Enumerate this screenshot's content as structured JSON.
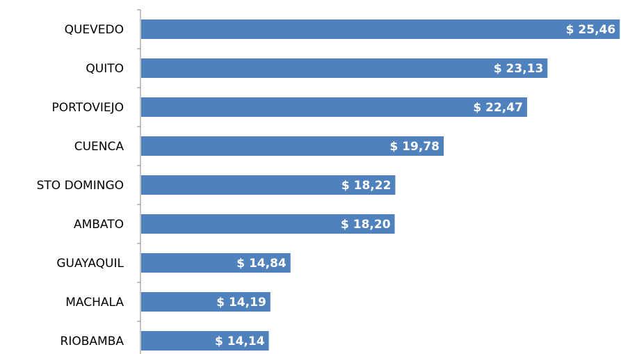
{
  "chart_data": {
    "type": "bar",
    "orientation": "horizontal",
    "categories": [
      "QUEVEDO",
      "QUITO",
      "PORTOVIEJO",
      "CUENCA",
      "STO DOMINGO",
      "AMBATO",
      "GUAYAQUIL",
      "MACHALA",
      "RIOBAMBA"
    ],
    "values": [
      25.46,
      23.13,
      22.47,
      19.78,
      18.22,
      18.2,
      14.84,
      14.19,
      14.14
    ],
    "value_labels": [
      "$ 25,46",
      "$ 23,13",
      "$ 22,47",
      "$ 19,78",
      "$ 18,22",
      "$ 18,20",
      "$ 14,84",
      "$ 14,19",
      "$ 14,14"
    ],
    "color": "#4f81bd",
    "xlim": [
      10,
      25.5
    ]
  }
}
